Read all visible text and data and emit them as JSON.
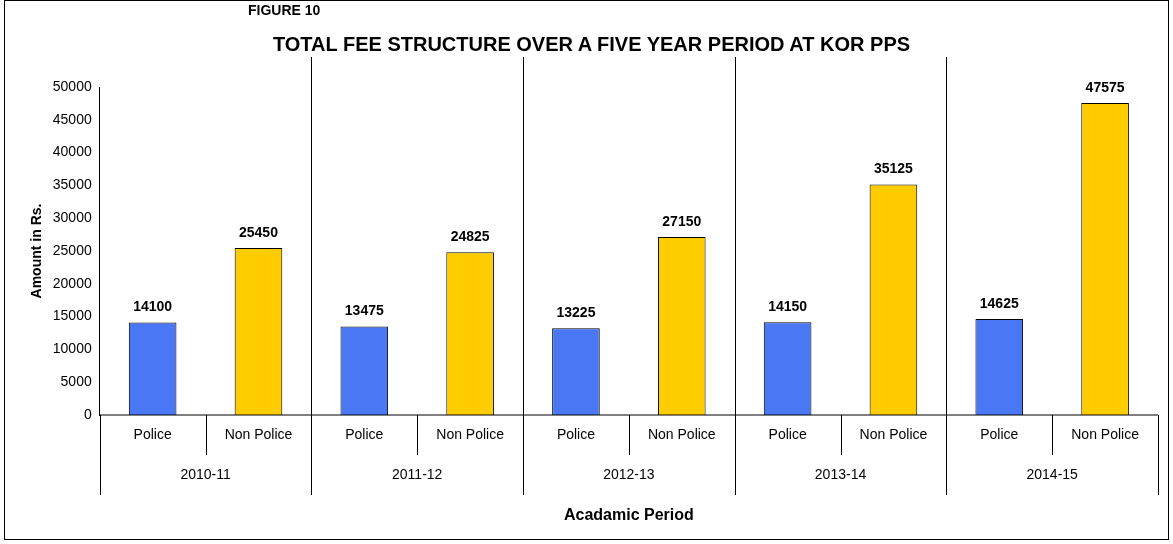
{
  "chart_data": {
    "type": "bar",
    "title": "TOTAL FEE STRUCTURE OVER A FIVE YEAR PERIOD AT KOR PPS",
    "xlabel": "Acadamic Period",
    "ylabel": "Amount in Rs.",
    "categories": [
      "Police",
      "Non Police",
      "Police",
      "Non Police",
      "Police",
      "Non Police",
      "Police",
      "Non Police",
      "Police",
      "Non Police"
    ],
    "values": [
      14100,
      25450,
      13475,
      24825,
      13225,
      27150,
      14150,
      35125,
      14625,
      47575
    ],
    "colors": [
      "#4a78f5",
      "#ffcc00",
      "#4a78f5",
      "#ffcc00",
      "#4a78f5",
      "#ffcc00",
      "#4a78f5",
      "#ffcc00",
      "#4a78f5",
      "#ffcc00"
    ],
    "annotations": [
      "FIGURE 10",
      "2010-11",
      "2011-12",
      "2012-13",
      "2013-14",
      "2014-15"
    ],
    "ylim": [
      0,
      50000
    ],
    "yticks": [
      0,
      5000,
      10000,
      15000,
      20000,
      25000,
      30000,
      35000,
      40000,
      45000,
      50000
    ],
    "grid": false,
    "legend": false,
    "data_labels": true
  }
}
